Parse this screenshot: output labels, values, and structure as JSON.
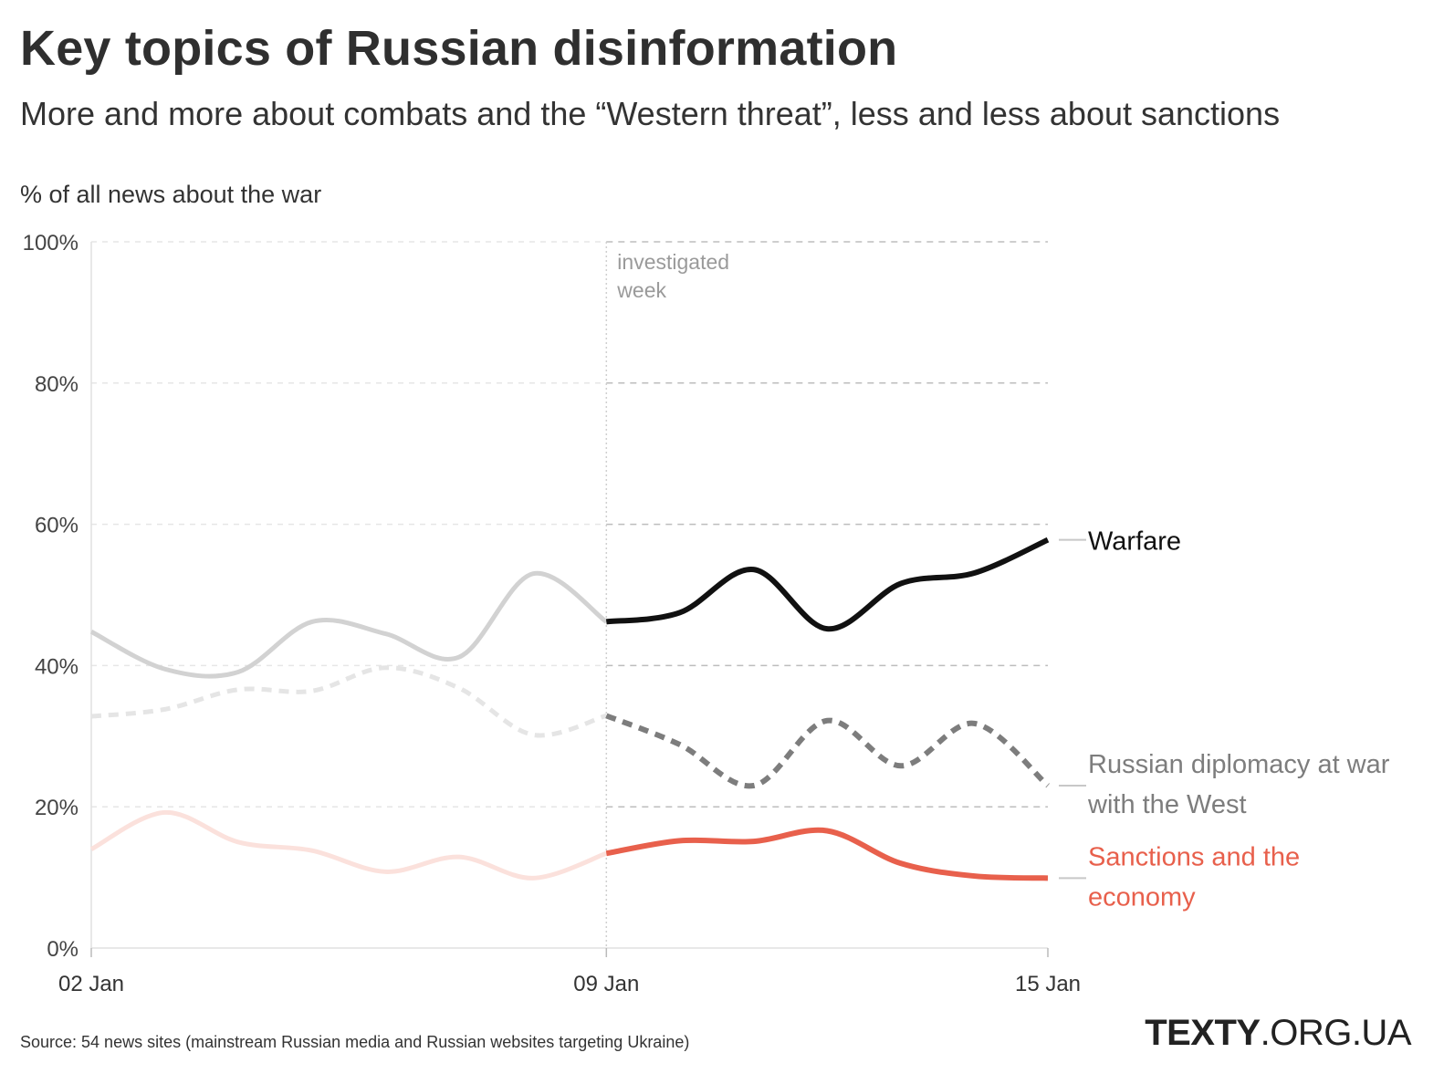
{
  "header": {
    "title": "Key topics of Russian disinformation",
    "subtitle": "More and more about combats and the “Western threat”, less and less about sanctions"
  },
  "footer": {
    "source": "Source: 54 news sites (mainstream Russian media and Russian websites targeting Ukraine)",
    "brand_bold": "TEXTY",
    "brand_rest": ".ORG.UA"
  },
  "chart_data": {
    "type": "line",
    "title": "Key topics of Russian disinformation",
    "subtitle": "More and more about combats and the “Western threat”, less and less about sanctions",
    "ylabel": "% of all news about the war",
    "xlabel": "",
    "ylim": [
      0,
      100
    ],
    "yticks": [
      0,
      20,
      40,
      60,
      80,
      100
    ],
    "ytick_labels": [
      "0%",
      "20%",
      "40%",
      "60%",
      "80%",
      "100%"
    ],
    "x": [
      "2022-01-02",
      "2022-01-03",
      "2022-01-04",
      "2022-01-05",
      "2022-01-06",
      "2022-01-07",
      "2022-01-08",
      "2022-01-09",
      "2022-01-10",
      "2022-01-11",
      "2022-01-12",
      "2022-01-13",
      "2022-01-14",
      "2022-01-15"
    ],
    "xtick_labels": [
      "02 Jan",
      "09 Jan",
      "15 Jan"
    ],
    "xtick_dates": [
      "2022-01-02",
      "2022-01-09",
      "2022-01-15"
    ],
    "annotation": {
      "text_line1": "investigated",
      "text_line2": "week",
      "date": "2022-01-09"
    },
    "highlight_from": "2022-01-09",
    "grid": "horizontal dashed",
    "legend": "direct labels at right end",
    "series": [
      {
        "name": "Warfare",
        "color": "#111111",
        "faded_color": "#d2d2d2",
        "dash": false,
        "values": [
          44.8,
          39.5,
          39.1,
          46.2,
          44.5,
          41.2,
          53.0,
          46.2,
          47.5,
          53.6,
          45.2,
          51.6,
          53.1,
          57.8
        ]
      },
      {
        "name": "Russian diplomacy at war with the West",
        "color": "#7d7d7d",
        "faded_color": "#e5e5e5",
        "dash": true,
        "values": [
          32.8,
          33.8,
          36.6,
          36.4,
          39.7,
          36.8,
          30.2,
          32.9,
          28.8,
          23.0,
          32.2,
          25.8,
          31.8,
          23.0
        ]
      },
      {
        "name": "Sanctions and the economy",
        "color": "#e8604c",
        "faded_color": "#fbe1dc",
        "dash": false,
        "values": [
          14.0,
          19.2,
          15.0,
          13.8,
          10.8,
          12.9,
          9.9,
          13.4,
          15.2,
          15.1,
          16.6,
          12.0,
          10.2,
          9.9
        ]
      }
    ]
  }
}
